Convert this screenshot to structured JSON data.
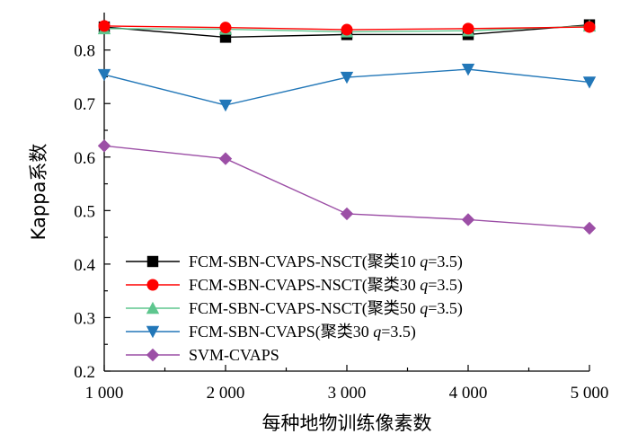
{
  "chart_data": {
    "type": "line",
    "xlabel": "每种地物训练像素数",
    "ylabel": "Kappa系数",
    "x": [
      1000,
      2000,
      3000,
      4000,
      5000
    ],
    "xtick_labels": [
      "1 000",
      "2 000",
      "3 000",
      "4 000",
      "5 000"
    ],
    "xlim": [
      1000,
      5000
    ],
    "ylim": [
      0.2,
      0.87
    ],
    "yticks": [
      0.2,
      0.3,
      0.4,
      0.5,
      0.6,
      0.7,
      0.8
    ],
    "ytick_labels": [
      "0.2",
      "0.3",
      "0.4",
      "0.5",
      "0.6",
      "0.7",
      "0.8"
    ],
    "grid": false,
    "legend_position": "bottom-left",
    "series": [
      {
        "name": "FCM-SBN-CVAPS-NSCT(聚类10 q=3.5)",
        "label_prefix": "FCM-SBN-CVAPS-NSCT(聚类10 ",
        "label_q": "q",
        "label_suffix": "=3.5)",
        "values": [
          0.843,
          0.824,
          0.829,
          0.829,
          0.847
        ],
        "color": "#000000",
        "marker": "square"
      },
      {
        "name": "FCM-SBN-CVAPS-NSCT(聚类30 q=3.5)",
        "label_prefix": "FCM-SBN-CVAPS-NSCT(聚类30 ",
        "label_q": "q",
        "label_suffix": "=3.5)",
        "values": [
          0.845,
          0.842,
          0.838,
          0.84,
          0.843
        ],
        "color": "#ff0000",
        "marker": "circle"
      },
      {
        "name": "FCM-SBN-CVAPS-NSCT(聚类50 q=3.5)",
        "label_prefix": "FCM-SBN-CVAPS-NSCT(聚类50 ",
        "label_q": "q",
        "label_suffix": "=3.5)",
        "values": [
          0.84,
          0.839,
          0.834,
          0.836,
          0.845
        ],
        "color": "#5ec68e",
        "marker": "triangle-up"
      },
      {
        "name": "FCM-SBN-CVAPS(聚类30 q=3.5)",
        "label_prefix": "FCM-SBN-CVAPS(聚类30 ",
        "label_q": "q",
        "label_suffix": "=3.5)",
        "values": [
          0.754,
          0.697,
          0.749,
          0.764,
          0.74
        ],
        "color": "#2277b8",
        "marker": "triangle-down"
      },
      {
        "name": "SVM-CVAPS",
        "label_prefix": "SVM-CVAPS",
        "label_q": "",
        "label_suffix": "",
        "values": [
          0.621,
          0.597,
          0.494,
          0.483,
          0.467
        ],
        "color": "#9c4fa6",
        "marker": "diamond"
      }
    ]
  }
}
